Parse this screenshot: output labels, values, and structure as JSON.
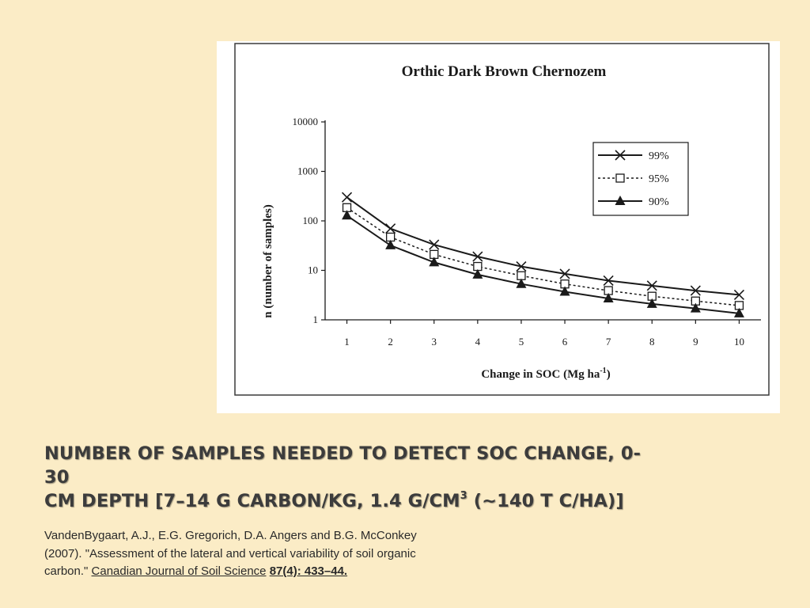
{
  "chart_data": {
    "type": "line",
    "title": "Orthic Dark Brown Chernozem",
    "xlabel": "Change in SOC (Mg ha",
    "xlabel_sup": "-1",
    "xlabel_end": ")",
    "ylabel": "n (number of samples)",
    "yscale": "log",
    "ylim": [
      1,
      10000
    ],
    "yticks": [
      1,
      10,
      100,
      1000,
      10000
    ],
    "ytick_labels": [
      "1",
      "10",
      "100",
      "1000",
      "10000"
    ],
    "x": [
      1,
      2,
      3,
      4,
      5,
      6,
      7,
      8,
      9,
      10
    ],
    "xtick_labels": [
      "1",
      "2",
      "3",
      "4",
      "5",
      "6",
      "7",
      "8",
      "9",
      "10"
    ],
    "legend_position": "top-right",
    "grid": false,
    "series": [
      {
        "name": "99%",
        "marker": "x",
        "line": "solid",
        "values": [
          300,
          70,
          33,
          19,
          12,
          8.5,
          6.2,
          4.9,
          3.9,
          3.2
        ]
      },
      {
        "name": "95%",
        "marker": "open-square",
        "line": "dotted",
        "values": [
          185,
          47,
          21,
          12,
          7.8,
          5.3,
          3.9,
          3.0,
          2.4,
          1.95
        ]
      },
      {
        "name": "90%",
        "marker": "filled-triangle",
        "line": "solid",
        "values": [
          128,
          32,
          14.5,
          8.2,
          5.3,
          3.7,
          2.7,
          2.1,
          1.7,
          1.35
        ]
      }
    ],
    "colors": {
      "lines": "#1a1a1a",
      "background": "#ffffff"
    }
  },
  "slide": {
    "title_line1": "Number of samples needed to detect SOC change, 0-30",
    "title_line2_a": "cm depth [7–14 g carbon/kg, 1.4 g/cm",
    "title_line2_sup": "3",
    "title_line2_b": " (~140 t C/ha)]",
    "citation_line1": "VandenBygaart, A.J., E.G. Gregorich, D.A. Angers and B.G. McConkey",
    "citation_line2": "(2007). \"Assessment of the lateral and vertical variability of soil organic",
    "citation_line3_pre": "carbon.\" ",
    "citation_journal": "Canadian Journal of Soil Science",
    "citation_space": " ",
    "citation_volume": "87(4): 433–44."
  },
  "colors": {
    "slide_background": "#fbecc6",
    "title_text": "#3c3c3c"
  }
}
